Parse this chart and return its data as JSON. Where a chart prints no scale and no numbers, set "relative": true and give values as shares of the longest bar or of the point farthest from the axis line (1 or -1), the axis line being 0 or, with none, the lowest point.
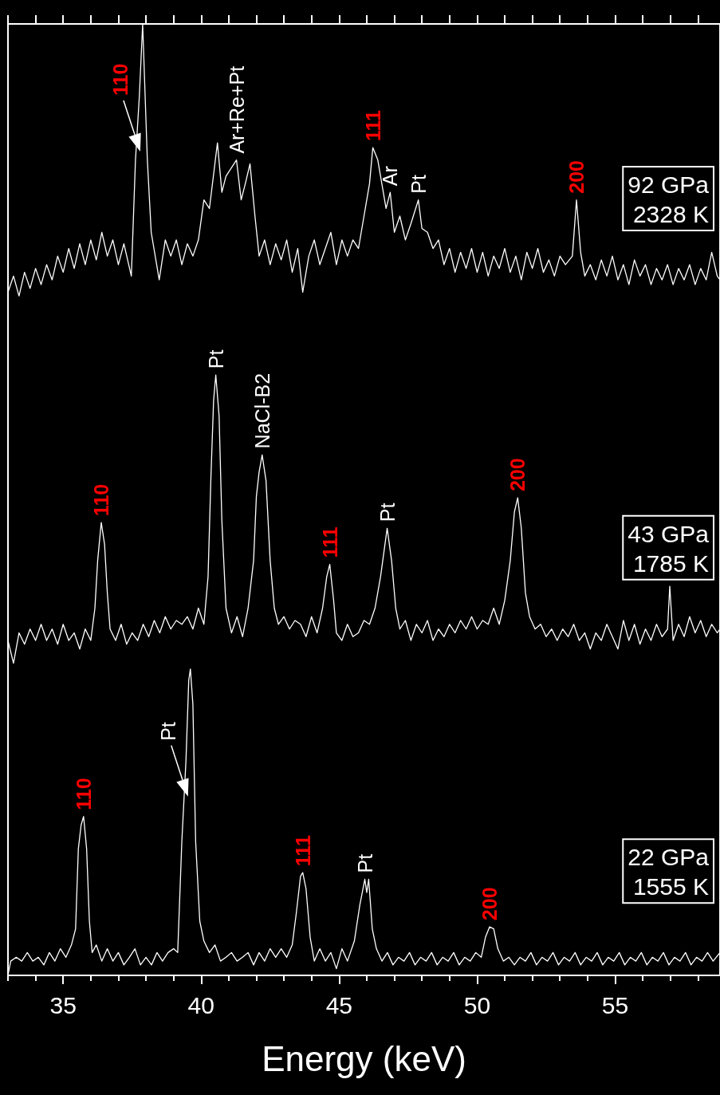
{
  "chart_data": {
    "type": "line",
    "relative": true,
    "xlabel": "Energy (keV)",
    "xlim": [
      33,
      58.8
    ],
    "xticks": [
      {
        "value": 33,
        "label": null
      },
      {
        "value": 34,
        "label": null
      },
      35,
      {
        "value": 36,
        "label": null
      },
      {
        "value": 37,
        "label": null
      },
      {
        "value": 38,
        "label": null
      },
      {
        "value": 39,
        "label": null
      },
      40,
      {
        "value": 41,
        "label": null
      },
      {
        "value": 42,
        "label": null
      },
      {
        "value": 43,
        "label": null
      },
      {
        "value": 44,
        "label": null
      },
      45,
      {
        "value": 46,
        "label": null
      },
      {
        "value": 47,
        "label": null
      },
      {
        "value": 48,
        "label": null
      },
      {
        "value": 49,
        "label": null
      },
      50,
      {
        "value": 51,
        "label": null
      },
      {
        "value": 52,
        "label": null
      },
      {
        "value": 53,
        "label": null
      },
      {
        "value": 54,
        "label": null
      },
      55,
      {
        "value": 56,
        "label": null
      },
      {
        "value": 57,
        "label": null
      },
      {
        "value": 58,
        "label": null
      }
    ],
    "series": [
      {
        "name": "92 GPa\n2328 K",
        "color": "#ffffff",
        "x": [
          33.0,
          33.2,
          33.4,
          33.6,
          33.8,
          34.0,
          34.2,
          34.4,
          34.6,
          34.8,
          35.0,
          35.2,
          35.4,
          35.6,
          35.8,
          36.0,
          36.2,
          36.4,
          36.6,
          36.8,
          37.0,
          37.2,
          37.47,
          37.62,
          37.76,
          37.88,
          38.05,
          38.19,
          38.48,
          38.7,
          38.9,
          39.1,
          39.3,
          39.5,
          39.7,
          39.9,
          40.1,
          40.3,
          40.59,
          40.75,
          40.9,
          41.28,
          41.45,
          41.6,
          41.77,
          41.95,
          42.1,
          42.3,
          42.5,
          42.7,
          42.9,
          43.1,
          43.3,
          43.5,
          43.68,
          43.9,
          44.1,
          44.3,
          44.5,
          44.7,
          44.9,
          45.1,
          45.3,
          45.5,
          45.7,
          45.9,
          46.1,
          46.22,
          46.4,
          46.6,
          46.7,
          46.85,
          47.0,
          47.2,
          47.4,
          47.6,
          47.87,
          48.0,
          48.2,
          48.4,
          48.6,
          48.8,
          49.0,
          49.2,
          49.4,
          49.6,
          49.8,
          50.0,
          50.2,
          50.4,
          50.6,
          50.8,
          51.0,
          51.2,
          51.4,
          51.6,
          51.8,
          52.0,
          52.2,
          52.4,
          52.6,
          52.8,
          53.0,
          53.2,
          53.45,
          53.6,
          53.75,
          53.9,
          54.1,
          54.3,
          54.5,
          54.7,
          54.9,
          55.1,
          55.3,
          55.5,
          55.7,
          55.9,
          56.1,
          56.3,
          56.5,
          56.7,
          56.9,
          57.1,
          57.3,
          57.5,
          57.7,
          57.9,
          58.1,
          58.3,
          58.5,
          58.7,
          58.8
        ],
        "values": [
          0.718,
          0.735,
          0.714,
          0.739,
          0.722,
          0.743,
          0.726,
          0.747,
          0.731,
          0.756,
          0.739,
          0.764,
          0.743,
          0.769,
          0.747,
          0.773,
          0.752,
          0.781,
          0.756,
          0.773,
          0.747,
          0.769,
          0.735,
          0.857,
          0.924,
          1,
          0.857,
          0.781,
          0.731,
          0.773,
          0.756,
          0.773,
          0.747,
          0.769,
          0.756,
          0.773,
          0.815,
          0.806,
          0.875,
          0.823,
          0.84,
          0.857,
          0.815,
          0.832,
          0.853,
          0.798,
          0.756,
          0.773,
          0.747,
          0.769,
          0.752,
          0.773,
          0.739,
          0.764,
          0.718,
          0.756,
          0.773,
          0.747,
          0.764,
          0.781,
          0.747,
          0.773,
          0.756,
          0.773,
          0.764,
          0.798,
          0.832,
          0.87,
          0.857,
          0.823,
          0.806,
          0.823,
          0.781,
          0.798,
          0.773,
          0.79,
          0.815,
          0.785,
          0.781,
          0.764,
          0.773,
          0.747,
          0.764,
          0.739,
          0.76,
          0.743,
          0.764,
          0.739,
          0.76,
          0.735,
          0.756,
          0.743,
          0.764,
          0.739,
          0.756,
          0.731,
          0.76,
          0.743,
          0.764,
          0.739,
          0.752,
          0.735,
          0.756,
          0.747,
          0.756,
          0.815,
          0.76,
          0.735,
          0.747,
          0.731,
          0.752,
          0.735,
          0.756,
          0.731,
          0.747,
          0.726,
          0.752,
          0.735,
          0.747,
          0.726,
          0.743,
          0.731,
          0.747,
          0.726,
          0.743,
          0.731,
          0.747,
          0.726,
          0.743,
          0.731,
          0.76,
          0.735,
          0.731
        ]
      },
      {
        "name": "43 GPa\n1785 K",
        "color": "#ffffff",
        "x": [
          33.0,
          33.2,
          33.4,
          33.6,
          33.8,
          34.0,
          34.2,
          34.4,
          34.6,
          34.8,
          35.0,
          35.2,
          35.4,
          35.6,
          35.8,
          36.0,
          36.15,
          36.25,
          36.38,
          36.5,
          36.6,
          36.7,
          36.9,
          37.1,
          37.3,
          37.5,
          37.7,
          37.9,
          38.1,
          38.3,
          38.5,
          38.7,
          38.9,
          39.1,
          39.3,
          39.5,
          39.7,
          39.9,
          40.1,
          40.25,
          40.35,
          40.45,
          40.53,
          40.65,
          40.75,
          40.9,
          41.1,
          41.3,
          41.5,
          41.7,
          41.9,
          42.0,
          42.1,
          42.21,
          42.35,
          42.5,
          42.65,
          42.8,
          43.0,
          43.2,
          43.4,
          43.6,
          43.8,
          44.0,
          44.2,
          44.4,
          44.55,
          44.66,
          44.8,
          44.9,
          45.1,
          45.3,
          45.5,
          45.7,
          45.9,
          46.1,
          46.3,
          46.5,
          46.74,
          46.9,
          47.05,
          47.2,
          47.4,
          47.6,
          47.8,
          48.0,
          48.2,
          48.4,
          48.6,
          48.8,
          49.0,
          49.2,
          49.4,
          49.6,
          49.8,
          50.0,
          50.2,
          50.4,
          50.6,
          50.8,
          51.0,
          51.2,
          51.35,
          51.47,
          51.6,
          51.75,
          51.9,
          52.1,
          52.3,
          52.5,
          52.7,
          52.9,
          53.1,
          53.3,
          53.5,
          53.7,
          53.9,
          54.1,
          54.3,
          54.5,
          54.7,
          54.9,
          55.1,
          55.3,
          55.5,
          55.7,
          55.9,
          56.1,
          56.3,
          56.5,
          56.7,
          56.9,
          56.98,
          57.1,
          57.3,
          57.5,
          57.7,
          57.9,
          58.1,
          58.3,
          58.5,
          58.7,
          58.8
        ],
        "values": [
          0.352,
          0.328,
          0.36,
          0.348,
          0.364,
          0.352,
          0.369,
          0.352,
          0.364,
          0.348,
          0.369,
          0.352,
          0.36,
          0.343,
          0.364,
          0.352,
          0.386,
          0.436,
          0.476,
          0.453,
          0.402,
          0.364,
          0.352,
          0.369,
          0.348,
          0.36,
          0.352,
          0.369,
          0.356,
          0.373,
          0.36,
          0.377,
          0.364,
          0.373,
          0.369,
          0.377,
          0.364,
          0.386,
          0.369,
          0.419,
          0.52,
          0.604,
          0.631,
          0.588,
          0.478,
          0.386,
          0.36,
          0.377,
          0.356,
          0.386,
          0.436,
          0.503,
          0.529,
          0.547,
          0.52,
          0.436,
          0.386,
          0.369,
          0.377,
          0.364,
          0.373,
          0.369,
          0.356,
          0.377,
          0.36,
          0.386,
          0.419,
          0.432,
          0.394,
          0.36,
          0.352,
          0.369,
          0.356,
          0.36,
          0.373,
          0.369,
          0.386,
          0.419,
          0.47,
          0.436,
          0.386,
          0.364,
          0.373,
          0.352,
          0.369,
          0.36,
          0.373,
          0.352,
          0.364,
          0.356,
          0.369,
          0.36,
          0.373,
          0.364,
          0.377,
          0.364,
          0.373,
          0.369,
          0.386,
          0.369,
          0.394,
          0.436,
          0.487,
          0.502,
          0.47,
          0.402,
          0.377,
          0.364,
          0.369,
          0.356,
          0.364,
          0.352,
          0.364,
          0.356,
          0.369,
          0.352,
          0.36,
          0.343,
          0.36,
          0.352,
          0.369,
          0.356,
          0.343,
          0.373,
          0.352,
          0.369,
          0.348,
          0.364,
          0.352,
          0.369,
          0.356,
          0.364,
          0.409,
          0.352,
          0.369,
          0.356,
          0.377,
          0.36,
          0.373,
          0.356,
          0.369,
          0.36,
          0.364
        ]
      },
      {
        "name": "22 GPa\n1555 K",
        "color": "#ffffff",
        "x": [
          33.0,
          33.1,
          33.3,
          33.5,
          33.7,
          33.9,
          34.1,
          34.3,
          34.5,
          34.7,
          34.9,
          35.1,
          35.3,
          35.45,
          35.55,
          35.65,
          35.74,
          35.85,
          35.95,
          36.05,
          36.2,
          36.4,
          36.6,
          36.8,
          37.0,
          37.2,
          37.4,
          37.6,
          37.8,
          38.0,
          38.2,
          38.4,
          38.6,
          38.8,
          39.0,
          39.15,
          39.3,
          39.45,
          39.55,
          39.61,
          39.7,
          39.8,
          39.95,
          40.1,
          40.3,
          40.5,
          40.7,
          40.9,
          41.1,
          41.3,
          41.5,
          41.7,
          41.9,
          42.1,
          42.3,
          42.5,
          42.7,
          42.9,
          43.1,
          43.3,
          43.45,
          43.6,
          43.68,
          43.8,
          43.95,
          44.1,
          44.3,
          44.5,
          44.7,
          44.9,
          45.1,
          45.3,
          45.55,
          45.75,
          45.93,
          46.0,
          46.07,
          46.2,
          46.35,
          46.55,
          46.75,
          46.95,
          47.15,
          47.35,
          47.55,
          47.75,
          47.95,
          48.15,
          48.35,
          48.55,
          48.75,
          48.95,
          49.15,
          49.35,
          49.55,
          49.75,
          49.95,
          50.15,
          50.3,
          50.45,
          50.6,
          50.75,
          50.95,
          51.15,
          51.35,
          51.55,
          51.75,
          51.95,
          52.15,
          52.35,
          52.55,
          52.75,
          52.95,
          53.15,
          53.35,
          53.55,
          53.75,
          53.95,
          54.15,
          54.35,
          54.55,
          54.75,
          54.95,
          55.15,
          55.35,
          55.55,
          55.75,
          55.95,
          56.15,
          56.35,
          56.55,
          56.75,
          56.95,
          57.15,
          57.35,
          57.55,
          57.75,
          57.95,
          58.15,
          58.35,
          58.55,
          58.8
        ],
        "values": [
          0,
          0.015,
          0.019,
          0.015,
          0.024,
          0.015,
          0.019,
          0.011,
          0.024,
          0.015,
          0.028,
          0.019,
          0.032,
          0.049,
          0.133,
          0.158,
          0.167,
          0.133,
          0.057,
          0.024,
          0.032,
          0.015,
          0.028,
          0.015,
          0.024,
          0.011,
          0.019,
          0.028,
          0.011,
          0.019,
          0.011,
          0.024,
          0.015,
          0.024,
          0.028,
          0.024,
          0.141,
          0.226,
          0.31,
          0.322,
          0.285,
          0.141,
          0.057,
          0.036,
          0.024,
          0.032,
          0.015,
          0.019,
          0.024,
          0.015,
          0.019,
          0.024,
          0.011,
          0.024,
          0.015,
          0.028,
          0.019,
          0.028,
          0.019,
          0.032,
          0.066,
          0.104,
          0.108,
          0.091,
          0.04,
          0.015,
          0.028,
          0.015,
          0.024,
          0.007,
          0.028,
          0.015,
          0.036,
          0.074,
          0.101,
          0.087,
          0.101,
          0.049,
          0.028,
          0.015,
          0.024,
          0.011,
          0.019,
          0.015,
          0.024,
          0.011,
          0.019,
          0.015,
          0.024,
          0.011,
          0.019,
          0.015,
          0.024,
          0.011,
          0.019,
          0.015,
          0.024,
          0.019,
          0.04,
          0.051,
          0.049,
          0.028,
          0.015,
          0.019,
          0.011,
          0.019,
          0.015,
          0.024,
          0.011,
          0.019,
          0.015,
          0.024,
          0.011,
          0.019,
          0.015,
          0.024,
          0.011,
          0.019,
          0.015,
          0.024,
          0.011,
          0.019,
          0.015,
          0.024,
          0.011,
          0.019,
          0.015,
          0.024,
          0.011,
          0.019,
          0.015,
          0.024,
          0.011,
          0.019,
          0.015,
          0.024,
          0.011,
          0.019,
          0.015,
          0.024,
          0.015,
          0.024
        ]
      }
    ],
    "annotations": [
      {
        "text": "110",
        "x": 37.88,
        "y": 1
      },
      {
        "text": "Ar+Re+Pt",
        "x": 41.28,
        "y": 0.857
      },
      {
        "text": "111",
        "x": 46.22,
        "y": 0.87
      },
      {
        "text": "Ar",
        "x": 46.85,
        "y": 0.823
      },
      {
        "text": "Pt",
        "x": 47.87,
        "y": 0.815
      },
      {
        "text": "200",
        "x": 53.6,
        "y": 0.815
      },
      {
        "text": "110",
        "x": 36.38,
        "y": 0.476
      },
      {
        "text": "Pt",
        "x": 40.53,
        "y": 0.631
      },
      {
        "text": "NaCl-B2",
        "x": 42.21,
        "y": 0.547
      },
      {
        "text": "111",
        "x": 44.66,
        "y": 0.432
      },
      {
        "text": "Pt",
        "x": 46.74,
        "y": 0.47
      },
      {
        "text": "200",
        "x": 51.47,
        "y": 0.502
      },
      {
        "text": "110",
        "x": 35.74,
        "y": 0.167
      },
      {
        "text": "Pt",
        "x": 39.61,
        "y": 0.322
      },
      {
        "text": "111",
        "x": 43.68,
        "y": 0.108
      },
      {
        "text": "Pt",
        "x": 45.93,
        "y": 0.101
      },
      {
        "text": "200",
        "x": 50.45,
        "y": 0.051
      }
    ]
  }
}
